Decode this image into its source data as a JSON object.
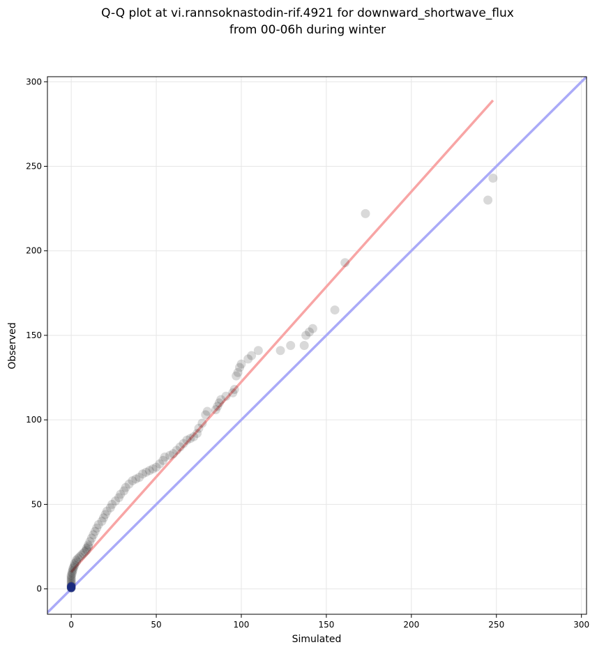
{
  "chart_data": {
    "type": "scatter",
    "title_line1": "Q-Q plot at vi.rannsoknastodin-rif.4921 for downward_shortwave_flux",
    "title_line2": "from 00-06h during winter",
    "xlabel": "Simulated",
    "ylabel": "Observed",
    "xlim": [
      -14,
      303
    ],
    "ylim": [
      -15,
      303
    ],
    "xticks": [
      0,
      50,
      100,
      150,
      200,
      250,
      300
    ],
    "yticks": [
      0,
      50,
      100,
      150,
      200,
      250,
      300
    ],
    "grid": true,
    "points": [
      [
        0,
        0.5
      ],
      [
        0,
        1
      ],
      [
        0,
        1.5
      ],
      [
        0,
        2
      ],
      [
        0,
        3
      ],
      [
        0,
        4
      ],
      [
        0,
        5
      ],
      [
        0,
        6
      ],
      [
        0,
        7
      ],
      [
        0,
        8
      ],
      [
        0.5,
        9
      ],
      [
        0.5,
        10
      ],
      [
        1,
        11
      ],
      [
        1,
        12
      ],
      [
        1.5,
        13
      ],
      [
        2,
        14
      ],
      [
        2,
        15
      ],
      [
        3,
        16
      ],
      [
        3,
        17
      ],
      [
        4,
        18
      ],
      [
        5,
        19
      ],
      [
        6,
        20
      ],
      [
        7,
        21
      ],
      [
        8,
        22
      ],
      [
        9,
        23
      ],
      [
        9,
        24
      ],
      [
        10,
        25
      ],
      [
        10,
        26
      ],
      [
        11,
        28
      ],
      [
        12,
        30
      ],
      [
        13,
        32
      ],
      [
        14,
        34
      ],
      [
        15,
        36
      ],
      [
        16,
        38
      ],
      [
        18,
        40
      ],
      [
        19,
        42
      ],
      [
        20,
        44
      ],
      [
        21,
        46
      ],
      [
        23,
        48
      ],
      [
        24,
        50
      ],
      [
        26,
        52
      ],
      [
        28,
        54
      ],
      [
        29,
        56
      ],
      [
        31,
        58
      ],
      [
        32,
        60
      ],
      [
        34,
        62
      ],
      [
        36,
        64
      ],
      [
        38,
        65
      ],
      [
        40,
        66
      ],
      [
        42,
        68
      ],
      [
        44,
        69
      ],
      [
        46,
        70
      ],
      [
        48,
        71
      ],
      [
        50,
        72
      ],
      [
        52,
        74
      ],
      [
        54,
        76
      ],
      [
        55,
        78
      ],
      [
        58,
        79
      ],
      [
        60,
        80
      ],
      [
        62,
        82
      ],
      [
        64,
        84
      ],
      [
        66,
        86
      ],
      [
        68,
        88
      ],
      [
        70,
        89
      ],
      [
        72,
        90
      ],
      [
        74,
        92
      ],
      [
        75,
        95
      ],
      [
        77,
        98
      ],
      [
        79,
        103
      ],
      [
        80,
        105
      ],
      [
        85,
        106
      ],
      [
        86,
        108
      ],
      [
        87,
        110
      ],
      [
        88,
        112
      ],
      [
        91,
        114
      ],
      [
        95,
        116
      ],
      [
        96,
        118
      ],
      [
        97,
        126
      ],
      [
        98,
        128
      ],
      [
        99,
        131
      ],
      [
        100,
        133
      ],
      [
        104,
        136
      ],
      [
        106,
        138
      ],
      [
        110,
        141
      ],
      [
        123,
        141
      ],
      [
        129,
        144
      ],
      [
        137,
        144
      ],
      [
        138,
        150
      ],
      [
        140,
        152
      ],
      [
        142,
        154
      ],
      [
        155,
        165
      ],
      [
        161,
        193
      ],
      [
        173,
        222
      ],
      [
        245,
        230
      ],
      [
        248,
        243
      ]
    ],
    "fit_line": {
      "x": [
        0,
        248
      ],
      "y": [
        10,
        289
      ],
      "color": "#f8a5a5"
    },
    "identity_line": {
      "x": [
        -14,
        303
      ],
      "y": [
        -14,
        303
      ],
      "color": "#aaaaf8"
    },
    "point_color": "#000000",
    "endpoint_color": "#1a2a80"
  }
}
